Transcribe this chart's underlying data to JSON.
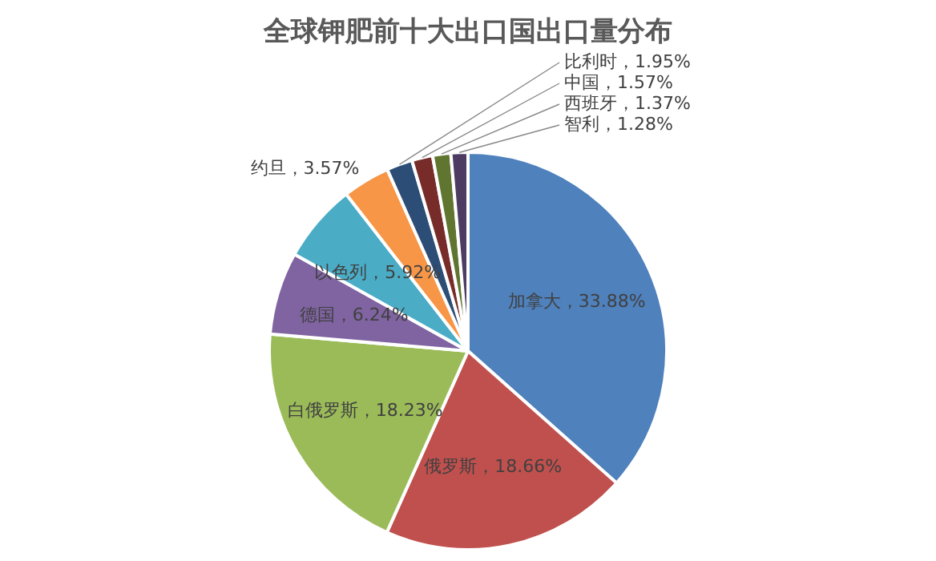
{
  "chart_data": {
    "type": "pie",
    "title": "全球钾肥前十大出口国出口量分布",
    "categories": [
      "加拿大",
      "俄罗斯",
      "白俄罗斯",
      "德国",
      "以色列",
      "约旦",
      "比利时",
      "中国",
      "西班牙",
      "智利"
    ],
    "values": [
      33.88,
      18.66,
      18.23,
      6.24,
      5.92,
      3.57,
      1.95,
      1.57,
      1.37,
      1.28
    ],
    "value_labels": [
      "33.88%",
      "18.66%",
      "18.23%",
      "6.24%",
      "5.92%",
      "3.57%",
      "1.95%",
      "1.57%",
      "1.37%",
      "1.28%"
    ],
    "colors": [
      "#4f81bd",
      "#c0504d",
      "#9bbb59",
      "#8064a2",
      "#4bacc6",
      "#f79646",
      "#2c4d75",
      "#772c2a",
      "#5f7530",
      "#4d3b62"
    ],
    "legend": false
  }
}
